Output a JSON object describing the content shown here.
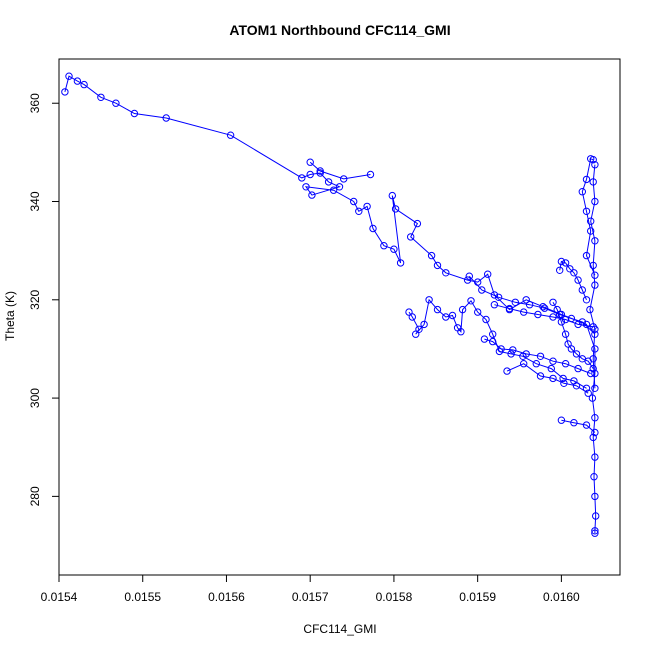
{
  "chart_data": {
    "type": "scatter",
    "title": "ATOM1 Northbound CFC114_GMI",
    "xlabel": "CFC114_GMI",
    "ylabel": "Theta (K)",
    "xlim": [
      0.0154,
      0.01607
    ],
    "ylim": [
      264,
      369
    ],
    "x_ticks": [
      0.0154,
      0.0155,
      0.0156,
      0.0157,
      0.0158,
      0.0159,
      0.016
    ],
    "x_tick_labels": [
      "0.0154",
      "0.0155",
      "0.0156",
      "0.0157",
      "0.0158",
      "0.0159",
      "0.0160"
    ],
    "y_ticks": [
      280,
      300,
      320,
      340,
      360
    ],
    "y_tick_labels": [
      "280",
      "300",
      "320",
      "340",
      "360"
    ],
    "color": "#0000ff",
    "marker": "open-circle",
    "connected": true,
    "grid": false,
    "series": [
      {
        "points": [
          [
            0.015407,
            362.3
          ],
          [
            0.015412,
            365.5
          ],
          [
            0.015422,
            364.5
          ],
          [
            0.01543,
            363.8
          ],
          [
            0.01545,
            361.2
          ],
          [
            0.015468,
            360.0
          ],
          [
            0.01549,
            357.9
          ],
          [
            0.015528,
            357.0
          ],
          [
            0.015605,
            353.5
          ],
          [
            0.01569,
            344.8
          ],
          [
            0.0157,
            345.5
          ],
          [
            0.015712,
            345.8
          ],
          [
            0.015722,
            344.0
          ],
          [
            0.015735,
            343.0
          ],
          [
            0.015702,
            341.3
          ],
          [
            0.015695,
            343.0
          ],
          [
            0.015728,
            342.3
          ],
          [
            0.015752,
            340.0
          ],
          [
            0.015758,
            338.0
          ],
          [
            0.015768,
            339.0
          ],
          [
            0.015775,
            334.5
          ],
          [
            0.015788,
            331.0
          ],
          [
            0.0158,
            330.3
          ],
          [
            0.015808,
            327.5
          ],
          [
            0.015798,
            341.2
          ],
          [
            0.015802,
            338.5
          ],
          [
            0.015828,
            335.5
          ],
          [
            0.01582,
            332.8
          ],
          [
            0.015845,
            329.0
          ],
          [
            0.015852,
            327.0
          ],
          [
            0.015862,
            325.5
          ],
          [
            0.015888,
            324.0
          ],
          [
            0.0159,
            323.6
          ],
          [
            0.015912,
            325.2
          ],
          [
            0.01592,
            321.0
          ],
          [
            0.015938,
            318.0
          ],
          [
            0.015958,
            320.0
          ],
          [
            0.015978,
            318.6
          ],
          [
            0.016,
            317.0
          ],
          [
            0.01603,
            315.0
          ],
          [
            0.01604,
            310.0
          ],
          [
            0.01604,
            305.0
          ],
          [
            0.016037,
            300.0
          ],
          [
            0.01604,
            296.0
          ],
          [
            0.016038,
            292.0
          ],
          [
            0.01604,
            288.0
          ],
          [
            0.016039,
            284.0
          ],
          [
            0.01604,
            280.0
          ],
          [
            0.016041,
            276.0
          ],
          [
            0.01604,
            273.0
          ],
          [
            0.01604,
            272.5
          ]
        ]
      },
      {
        "points": [
          [
            0.0157,
            348.0
          ],
          [
            0.015712,
            346.2
          ],
          [
            0.01574,
            344.6
          ],
          [
            0.015772,
            345.5
          ]
        ]
      },
      {
        "points": [
          [
            0.01604,
            347.5
          ],
          [
            0.016038,
            344.0
          ],
          [
            0.01604,
            340.0
          ],
          [
            0.016035,
            336.0
          ],
          [
            0.01604,
            332.0
          ],
          [
            0.016038,
            327.0
          ],
          [
            0.01604,
            323.0
          ],
          [
            0.016034,
            318.0
          ],
          [
            0.01604,
            314.0
          ],
          [
            0.016038,
            308.0
          ],
          [
            0.01604,
            302.0
          ]
        ]
      },
      {
        "points": [
          [
            0.016038,
            348.5
          ],
          [
            0.016035,
            348.7
          ],
          [
            0.01603,
            344.5
          ],
          [
            0.016025,
            342.0
          ],
          [
            0.01603,
            338.0
          ],
          [
            0.016035,
            334.0
          ],
          [
            0.01603,
            329.0
          ],
          [
            0.01604,
            325.0
          ]
        ]
      },
      {
        "points": [
          [
            0.015818,
            317.5
          ],
          [
            0.015822,
            316.5
          ],
          [
            0.01583,
            314.0
          ],
          [
            0.015826,
            313.0
          ],
          [
            0.015836,
            315.0
          ],
          [
            0.015842,
            320.0
          ],
          [
            0.015852,
            318.0
          ],
          [
            0.015862,
            316.5
          ],
          [
            0.01587,
            316.8
          ],
          [
            0.015876,
            314.3
          ],
          [
            0.01588,
            313.5
          ],
          [
            0.015882,
            318.0
          ],
          [
            0.015892,
            319.8
          ],
          [
            0.0159,
            317.5
          ],
          [
            0.01591,
            316.0
          ],
          [
            0.015918,
            313.0
          ],
          [
            0.015926,
            309.5
          ],
          [
            0.01594,
            309.0
          ],
          [
            0.015954,
            308.5
          ],
          [
            0.01597,
            307.0
          ],
          [
            0.015988,
            306.0
          ],
          [
            0.016002,
            304.0
          ],
          [
            0.016015,
            303.5
          ],
          [
            0.01603,
            302.0
          ]
        ]
      },
      {
        "points": [
          [
            0.015908,
            312.0
          ],
          [
            0.015918,
            311.5
          ],
          [
            0.015928,
            310.0
          ],
          [
            0.015942,
            309.8
          ],
          [
            0.015958,
            309.0
          ],
          [
            0.015975,
            308.5
          ],
          [
            0.01599,
            307.5
          ],
          [
            0.016005,
            307.0
          ],
          [
            0.01602,
            306.0
          ],
          [
            0.016035,
            305.0
          ]
        ]
      },
      {
        "points": [
          [
            0.015935,
            305.5
          ],
          [
            0.015955,
            307.0
          ],
          [
            0.015975,
            304.5
          ],
          [
            0.01599,
            304.0
          ],
          [
            0.016003,
            303.0
          ],
          [
            0.016018,
            302.5
          ],
          [
            0.016032,
            301.0
          ]
        ]
      },
      {
        "points": [
          [
            0.016,
            295.5
          ],
          [
            0.016015,
            295.0
          ],
          [
            0.01603,
            294.5
          ],
          [
            0.01604,
            293.0
          ]
        ]
      },
      {
        "points": [
          [
            0.01589,
            324.8
          ],
          [
            0.015905,
            322.0
          ],
          [
            0.015925,
            320.5
          ],
          [
            0.015945,
            319.5
          ],
          [
            0.015962,
            319.0
          ],
          [
            0.01598,
            318.3
          ],
          [
            0.015998,
            317.0
          ],
          [
            0.016012,
            316.2
          ],
          [
            0.016025,
            315.5
          ],
          [
            0.01604,
            313.0
          ]
        ]
      },
      {
        "points": [
          [
            0.01592,
            319.0
          ],
          [
            0.015938,
            318.2
          ],
          [
            0.015955,
            317.5
          ],
          [
            0.015972,
            317.0
          ],
          [
            0.01599,
            316.5
          ],
          [
            0.016005,
            316.0
          ],
          [
            0.01602,
            315.0
          ],
          [
            0.016038,
            314.5
          ]
        ]
      },
      {
        "points": [
          [
            0.015998,
            326.0
          ],
          [
            0.016,
            327.8
          ],
          [
            0.016005,
            327.5
          ],
          [
            0.01601,
            326.3
          ],
          [
            0.016015,
            325.5
          ],
          [
            0.01602,
            324.0
          ],
          [
            0.016025,
            322.0
          ],
          [
            0.01603,
            320.0
          ]
        ]
      },
      {
        "points": [
          [
            0.01599,
            319.5
          ],
          [
            0.015995,
            318.0
          ],
          [
            0.016,
            315.5
          ],
          [
            0.016005,
            313.0
          ],
          [
            0.016008,
            311.0
          ],
          [
            0.016012,
            310.0
          ],
          [
            0.016018,
            309.0
          ],
          [
            0.016025,
            308.0
          ],
          [
            0.016032,
            307.5
          ],
          [
            0.016038,
            306.0
          ]
        ]
      }
    ]
  }
}
